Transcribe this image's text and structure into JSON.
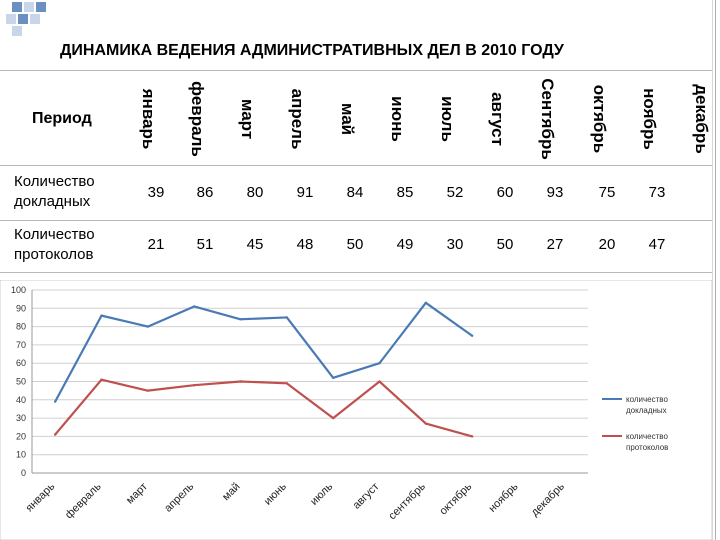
{
  "title": "ДИНАМИКА ВЕДЕНИЯ АДМИНИСТРАТИВНЫХ ДЕЛ В 2010 ГОДУ",
  "table": {
    "period_label": "Период",
    "months": [
      "январь",
      "февраль",
      "март",
      "апрель",
      "май",
      "июнь",
      "июль",
      "август",
      "Сентябрь",
      "октябрь",
      "ноябрь",
      "декабрь"
    ],
    "rows": [
      {
        "label": "Количество докладных",
        "values": [
          "39",
          "86",
          "80",
          "91",
          "84",
          "85",
          "52",
          "60",
          "93",
          "75",
          "73",
          ""
        ]
      },
      {
        "label": "Количество протоколов",
        "values": [
          "21",
          "51",
          "45",
          "48",
          "50",
          "49",
          "30",
          "50",
          "27",
          "20",
          "47",
          ""
        ]
      }
    ]
  },
  "chart_data": {
    "type": "line",
    "categories": [
      "январь",
      "февраль",
      "март",
      "апрель",
      "май",
      "июнь",
      "июль",
      "август",
      "сентябрь",
      "октябрь",
      "ноябрь",
      "декабрь"
    ],
    "series": [
      {
        "name": "количество докладных",
        "color": "#4a7ab5",
        "values": [
          39,
          86,
          80,
          91,
          84,
          85,
          52,
          60,
          93,
          75,
          null,
          null
        ]
      },
      {
        "name": "количество протоколов",
        "color": "#c0504d",
        "values": [
          21,
          51,
          45,
          48,
          50,
          49,
          30,
          50,
          27,
          20,
          null,
          null
        ]
      }
    ],
    "ylim": [
      0,
      100
    ],
    "yticks": [
      0,
      10,
      20,
      30,
      40,
      50,
      60,
      70,
      80,
      90,
      100
    ],
    "grid": true,
    "legend_position": "right",
    "title": "",
    "xlabel": "",
    "ylabel": ""
  }
}
